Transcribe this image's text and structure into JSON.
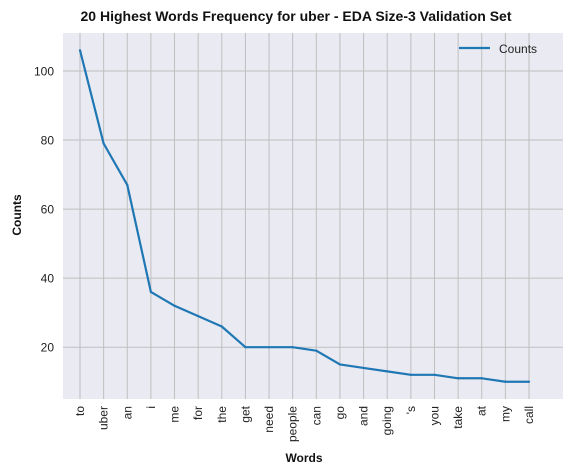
{
  "chart_data": {
    "type": "line",
    "title": "20 Highest Words Frequency for uber - EDA Size-3 Validation Set",
    "xlabel": "Words",
    "ylabel": "Counts",
    "categories": [
      "to",
      "uber",
      "an",
      "i",
      "me",
      "for",
      "the",
      "get",
      "need",
      "people",
      "can",
      "go",
      "and",
      "going",
      "'s",
      "you",
      "take",
      "at",
      "my",
      "call"
    ],
    "series": [
      {
        "name": "Counts",
        "values": [
          106,
          79,
          67,
          36,
          32,
          29,
          26,
          20,
          20,
          20,
          19,
          15,
          14,
          13,
          12,
          12,
          11,
          11,
          10,
          10
        ],
        "color": "#1f77b4"
      }
    ],
    "y_ticks": [
      20,
      40,
      60,
      80,
      100
    ],
    "ylim": [
      5,
      111
    ],
    "grid": true,
    "legend_position": "top-right",
    "background": "#eaeaf2",
    "grid_color": "#bfbfbf"
  }
}
